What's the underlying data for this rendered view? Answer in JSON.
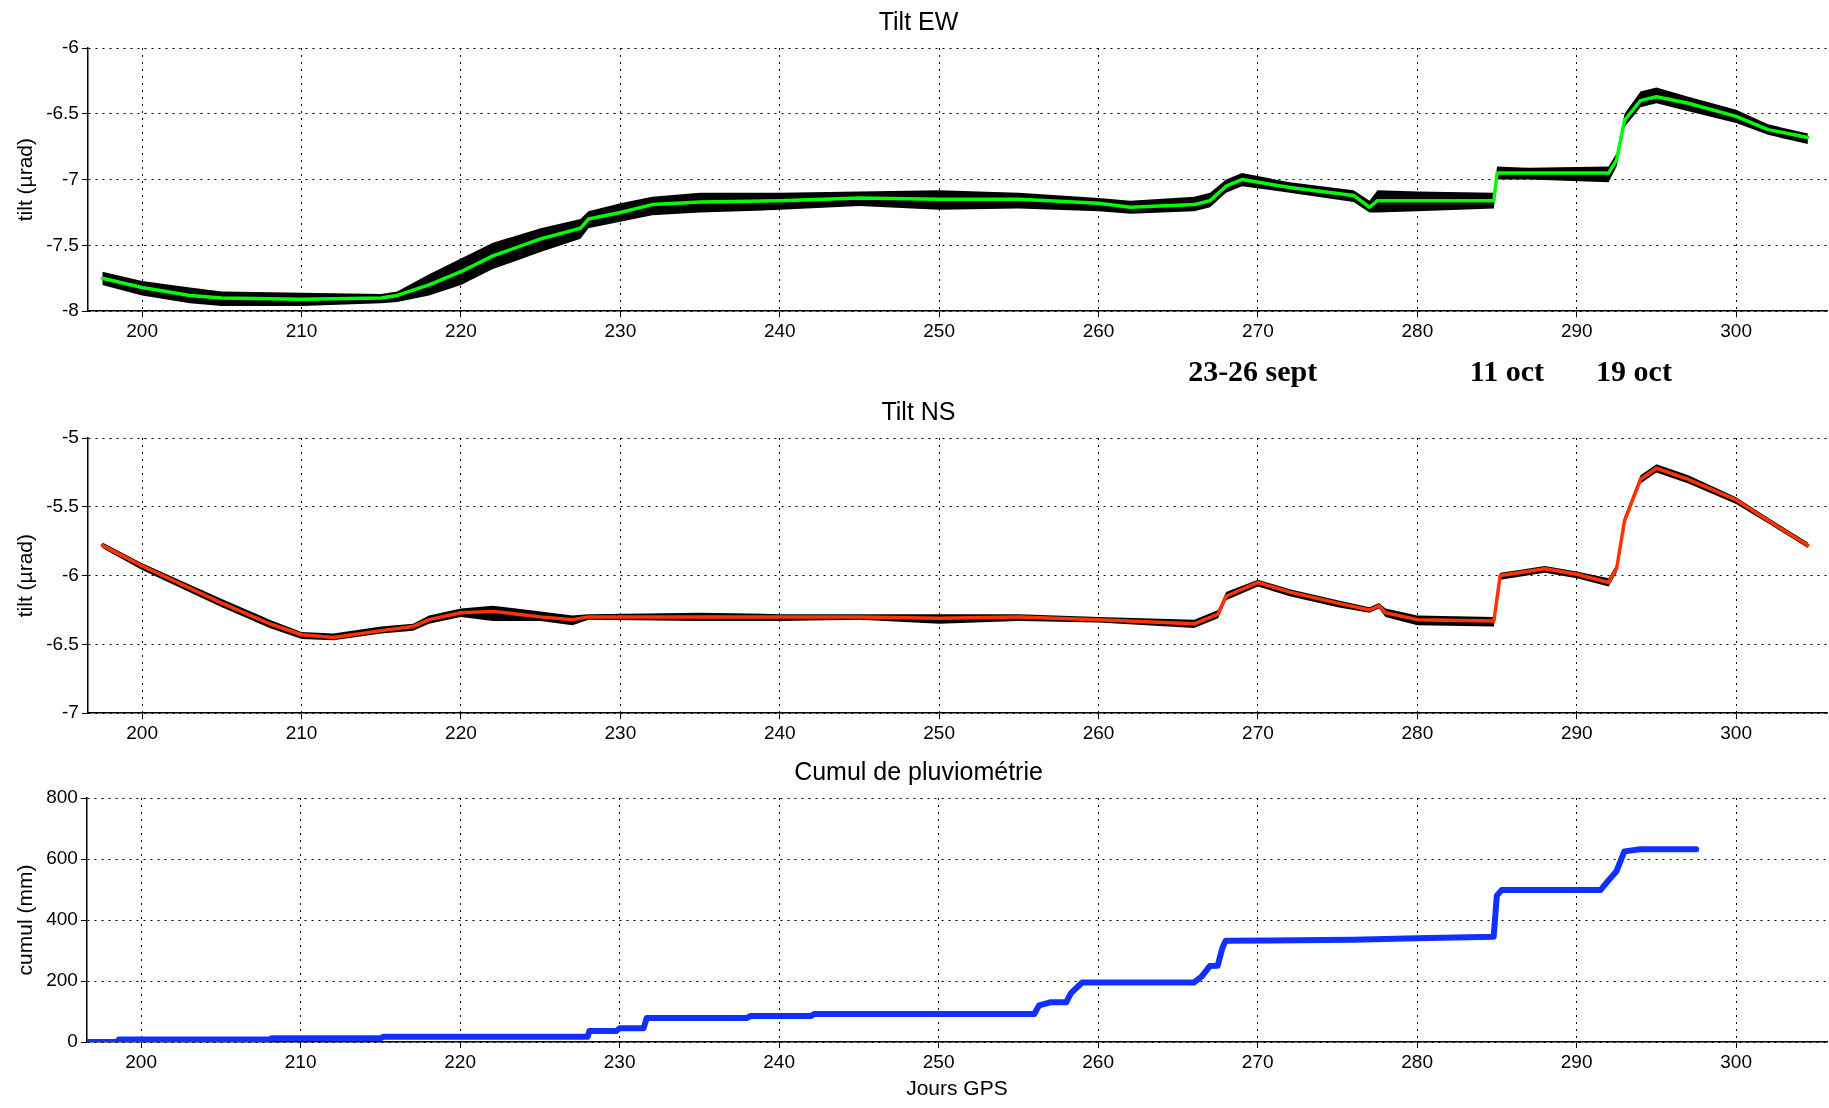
{
  "chart_data": [
    {
      "type": "line",
      "title": "Tilt EW",
      "ylabel": "tilt (µrad)",
      "xlim": [
        196.6,
        305.7
      ],
      "xticks": [
        200,
        210,
        220,
        230,
        240,
        250,
        260,
        270,
        280,
        290,
        300
      ],
      "ylim": [
        -8,
        -6
      ],
      "yticks": [
        -8,
        -7.5,
        -7,
        -6.5,
        -6
      ],
      "grid": true,
      "legend": false,
      "line_style": "solid",
      "marker": "none",
      "x": [
        197.5,
        200,
        203,
        205,
        210,
        215,
        216,
        218,
        220,
        222,
        225,
        227.5,
        228,
        230,
        232,
        235,
        240,
        245,
        250,
        255,
        260,
        262,
        266,
        267,
        268,
        269,
        272,
        276,
        277,
        277.5,
        280,
        284.8,
        285,
        287,
        292,
        292.5,
        293,
        294,
        295,
        297,
        300,
        302,
        304.5
      ],
      "series": [
        {
          "color": "#00ff00",
          "values": [
            -7.75,
            -7.82,
            -7.88,
            -7.9,
            -7.91,
            -7.9,
            -7.88,
            -7.8,
            -7.7,
            -7.58,
            -7.45,
            -7.37,
            -7.3,
            -7.25,
            -7.19,
            -7.17,
            -7.16,
            -7.14,
            -7.15,
            -7.15,
            -7.18,
            -7.21,
            -7.19,
            -7.16,
            -7.05,
            -7.0,
            -7.06,
            -7.12,
            -7.21,
            -7.16,
            -7.16,
            -7.16,
            -6.95,
            -6.95,
            -6.95,
            -6.85,
            -6.55,
            -6.4,
            -6.37,
            -6.42,
            -6.52,
            -6.62,
            -6.68
          ],
          "lower": [
            -7.8,
            -7.88,
            -7.94,
            -7.96,
            -7.96,
            -7.94,
            -7.93,
            -7.88,
            -7.8,
            -7.68,
            -7.55,
            -7.45,
            -7.37,
            -7.32,
            -7.27,
            -7.25,
            -7.23,
            -7.2,
            -7.23,
            -7.22,
            -7.24,
            -7.26,
            -7.24,
            -7.21,
            -7.1,
            -7.05,
            -7.1,
            -7.17,
            -7.25,
            -7.25,
            -7.24,
            -7.22,
            -7.0,
            -7.0,
            -7.02,
            -6.9,
            -6.6,
            -6.45,
            -6.42,
            -6.48,
            -6.57,
            -6.66,
            -6.73
          ],
          "upper": [
            -7.7,
            -7.77,
            -7.82,
            -7.85,
            -7.86,
            -7.87,
            -7.85,
            -7.72,
            -7.6,
            -7.48,
            -7.37,
            -7.3,
            -7.24,
            -7.18,
            -7.13,
            -7.1,
            -7.1,
            -7.09,
            -7.08,
            -7.1,
            -7.14,
            -7.16,
            -7.13,
            -7.1,
            -7.0,
            -6.95,
            -7.02,
            -7.08,
            -7.16,
            -7.08,
            -7.09,
            -7.1,
            -6.9,
            -6.91,
            -6.9,
            -6.8,
            -6.5,
            -6.33,
            -6.3,
            -6.37,
            -6.47,
            -6.58,
            -6.65
          ]
        }
      ],
      "annotations": [
        "23-26 sept",
        "11 oct",
        "19 oct"
      ]
    },
    {
      "type": "line",
      "title": "Tilt NS",
      "ylabel": "tilt (µrad)",
      "xlim": [
        196.6,
        305.7
      ],
      "xticks": [
        200,
        210,
        220,
        230,
        240,
        250,
        260,
        270,
        280,
        290,
        300
      ],
      "ylim": [
        -7,
        -5
      ],
      "yticks": [
        -7,
        -6.5,
        -6,
        -5.5,
        -5
      ],
      "grid": true,
      "legend": false,
      "line_style": "solid",
      "marker": "none",
      "x": [
        197.5,
        200,
        205,
        208,
        210,
        212,
        215,
        217,
        218,
        220,
        222,
        225,
        227,
        228,
        235,
        240,
        245,
        250,
        255,
        260,
        266,
        267.5,
        268,
        270,
        272,
        275,
        277,
        277.6,
        278,
        280,
        284.8,
        285.2,
        288,
        290,
        292,
        292.5,
        293,
        294,
        295,
        297,
        300,
        302,
        304.5
      ],
      "series": [
        {
          "color": "#ff3300",
          "values": [
            -5.78,
            -5.93,
            -6.2,
            -6.35,
            -6.43,
            -6.45,
            -6.4,
            -6.37,
            -6.32,
            -6.27,
            -6.26,
            -6.3,
            -6.32,
            -6.3,
            -6.3,
            -6.3,
            -6.3,
            -6.31,
            -6.3,
            -6.32,
            -6.35,
            -6.28,
            -6.15,
            -6.05,
            -6.12,
            -6.2,
            -6.25,
            -6.22,
            -6.27,
            -6.32,
            -6.33,
            -6.0,
            -5.95,
            -5.99,
            -6.05,
            -5.95,
            -5.6,
            -5.3,
            -5.22,
            -5.3,
            -5.45,
            -5.6,
            -5.78
          ],
          "lower": [
            -5.8,
            -5.96,
            -6.23,
            -6.38,
            -6.46,
            -6.47,
            -6.42,
            -6.4,
            -6.35,
            -6.3,
            -6.33,
            -6.33,
            -6.36,
            -6.32,
            -6.33,
            -6.33,
            -6.32,
            -6.35,
            -6.33,
            -6.34,
            -6.38,
            -6.31,
            -6.18,
            -6.08,
            -6.15,
            -6.23,
            -6.27,
            -6.24,
            -6.3,
            -6.36,
            -6.37,
            -6.03,
            -5.98,
            -6.02,
            -6.08,
            -5.98,
            -5.63,
            -5.33,
            -5.25,
            -5.33,
            -5.48,
            -5.62,
            -5.8
          ],
          "upper": [
            -5.76,
            -5.91,
            -6.17,
            -6.32,
            -6.41,
            -6.42,
            -6.37,
            -6.35,
            -6.29,
            -6.24,
            -6.22,
            -6.26,
            -6.29,
            -6.28,
            -6.27,
            -6.28,
            -6.28,
            -6.28,
            -6.28,
            -6.3,
            -6.32,
            -6.25,
            -6.12,
            -6.03,
            -6.1,
            -6.18,
            -6.23,
            -6.2,
            -6.24,
            -6.29,
            -6.3,
            -5.98,
            -5.93,
            -5.97,
            -6.02,
            -5.92,
            -5.57,
            -5.27,
            -5.19,
            -5.27,
            -5.43,
            -5.58,
            -5.76
          ]
        }
      ]
    },
    {
      "type": "line",
      "title": "Cumul de pluviométrie",
      "xlabel": "Jours GPS",
      "ylabel": "cumul (mm)",
      "xlim": [
        196.6,
        305.7
      ],
      "xticks": [
        200,
        210,
        220,
        230,
        240,
        250,
        260,
        270,
        280,
        290,
        300
      ],
      "ylim": [
        0,
        800
      ],
      "yticks": [
        0,
        200,
        400,
        600,
        800
      ],
      "grid": true,
      "legend": false,
      "line_style": "solid",
      "marker": "none",
      "x": [
        196.6,
        198.5,
        198.6,
        208,
        208.2,
        215,
        215.2,
        228,
        228.1,
        229.8,
        230,
        231.5,
        231.7,
        238,
        238.2,
        242,
        242.2,
        256,
        256.3,
        257,
        258,
        258.3,
        259,
        266,
        266.5,
        267,
        267.5,
        267.8,
        268,
        276,
        280,
        284.8,
        285,
        285.3,
        291.5,
        292,
        292.5,
        293,
        294,
        297.5
      ],
      "series": [
        {
          "color": "#1030ff",
          "values": [
            0,
            0,
            8,
            8,
            12,
            12,
            17,
            17,
            36,
            36,
            45,
            45,
            79,
            79,
            85,
            85,
            92,
            92,
            120,
            130,
            130,
            160,
            195,
            195,
            215,
            249,
            250,
            310,
            332,
            335,
            340,
            345,
            480,
            498,
            498,
            530,
            560,
            625,
            632,
            632
          ]
        }
      ]
    }
  ]
}
